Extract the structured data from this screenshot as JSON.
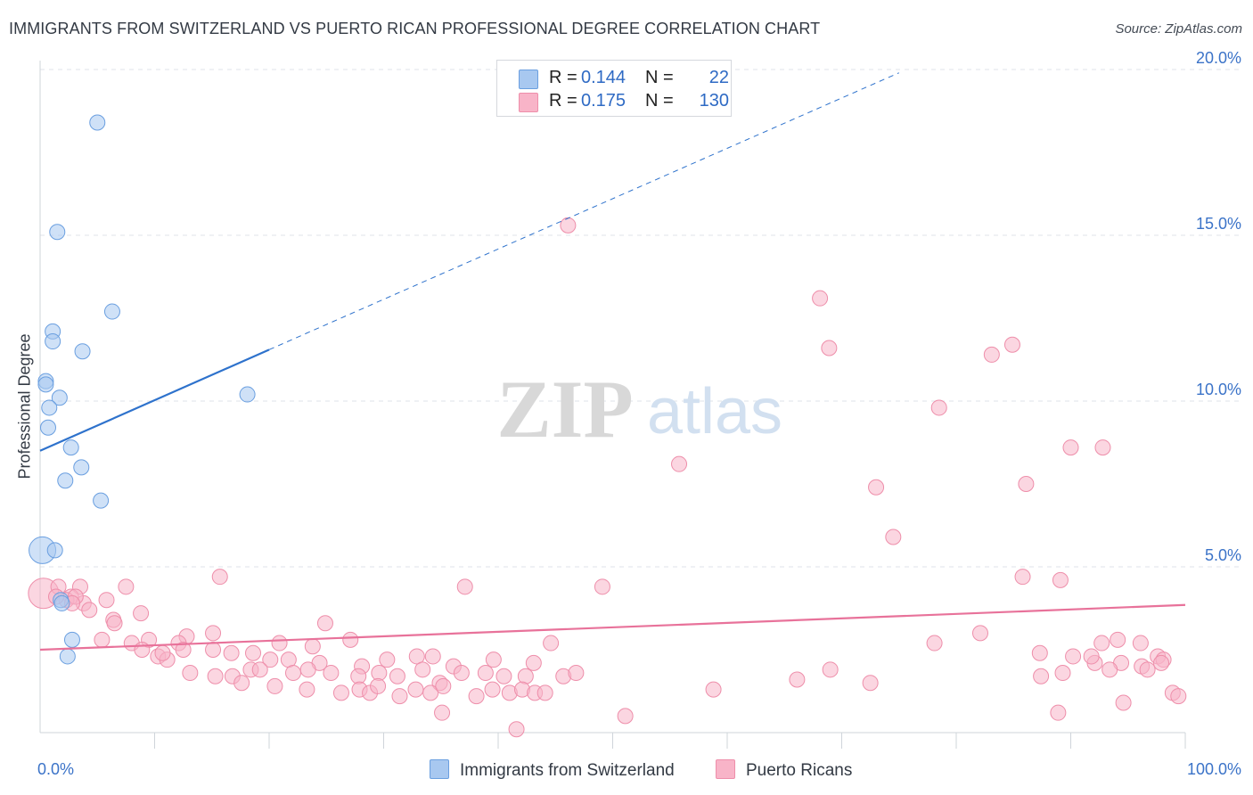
{
  "title": "IMMIGRANTS FROM SWITZERLAND VS PUERTO RICAN PROFESSIONAL DEGREE CORRELATION CHART",
  "source": "Source: ZipAtlas.com",
  "watermark": {
    "zip": "ZIP",
    "atlas": "atlas"
  },
  "legend": [
    {
      "r_label": "R =",
      "r_value": "0.144",
      "n_label": "N =",
      "n_value": "22",
      "color": "#a8c8f0",
      "border": "#6a9fe0"
    },
    {
      "r_label": "R =",
      "r_value": "0.175",
      "n_label": "N =",
      "n_value": "130",
      "color": "#f8b4c8",
      "border": "#ee8eaa"
    }
  ],
  "bottom_legend": [
    {
      "label": "Immigrants from Switzerland",
      "color": "#a8c8f0",
      "border": "#6a9fe0"
    },
    {
      "label": "Puerto Ricans",
      "color": "#f8b4c8",
      "border": "#ee8eaa"
    }
  ],
  "chart_data": {
    "type": "scatter",
    "title": "IMMIGRANTS FROM SWITZERLAND VS PUERTO RICAN PROFESSIONAL DEGREE CORRELATION CHART",
    "xlabel": "",
    "ylabel": "Professional Degree",
    "xlim": [
      0,
      100
    ],
    "ylim": [
      0,
      20
    ],
    "x_tick_labels": [
      "0.0%",
      "100.0%"
    ],
    "y_ticks": [
      5,
      10,
      15,
      20
    ],
    "y_tick_labels": [
      "5.0%",
      "10.0%",
      "15.0%",
      "20.0%"
    ],
    "grid": true,
    "series": [
      {
        "name": "Immigrants from Switzerland",
        "color": "#a8c8f0",
        "stroke": "#6a9fe0",
        "line_color": "#2e72cc",
        "trend": {
          "x0": 0,
          "y0": 8.5,
          "x1": 20,
          "y1": 11.55,
          "dash_to_x": 75,
          "dash_to_y": 19.9
        },
        "points": [
          [
            5.0,
            18.4
          ],
          [
            1.5,
            15.1
          ],
          [
            6.3,
            12.7
          ],
          [
            1.1,
            12.1
          ],
          [
            1.1,
            11.8
          ],
          [
            3.7,
            11.5
          ],
          [
            0.5,
            10.6
          ],
          [
            0.5,
            10.5
          ],
          [
            1.7,
            10.1
          ],
          [
            0.8,
            9.8
          ],
          [
            18.1,
            10.2
          ],
          [
            0.7,
            9.2
          ],
          [
            2.7,
            8.6
          ],
          [
            3.6,
            8.0
          ],
          [
            2.2,
            7.6
          ],
          [
            5.3,
            7.0
          ],
          [
            0.2,
            5.5
          ],
          [
            1.3,
            5.5
          ],
          [
            1.8,
            4.0
          ],
          [
            1.9,
            3.9
          ],
          [
            2.8,
            2.8
          ],
          [
            2.4,
            2.3
          ]
        ],
        "sizes": {
          "16": 30
        }
      },
      {
        "name": "Puerto Ricans",
        "color": "#f8b4c8",
        "stroke": "#ee8eaa",
        "line_color": "#e8729a",
        "trend": {
          "x0": 0,
          "y0": 2.5,
          "x1": 100,
          "y1": 3.85
        },
        "points": [
          [
            46.1,
            15.3
          ],
          [
            68.1,
            13.1
          ],
          [
            68.9,
            11.6
          ],
          [
            84.9,
            11.7
          ],
          [
            83.1,
            11.4
          ],
          [
            78.5,
            9.8
          ],
          [
            90.0,
            8.6
          ],
          [
            92.8,
            8.6
          ],
          [
            55.8,
            8.1
          ],
          [
            73.0,
            7.4
          ],
          [
            86.1,
            7.5
          ],
          [
            74.5,
            5.9
          ],
          [
            15.7,
            4.7
          ],
          [
            85.8,
            4.7
          ],
          [
            89.1,
            4.6
          ],
          [
            37.1,
            4.4
          ],
          [
            49.1,
            4.4
          ],
          [
            0.3,
            4.2
          ],
          [
            3.5,
            4.4
          ],
          [
            7.5,
            4.4
          ],
          [
            1.6,
            4.4
          ],
          [
            2.7,
            4.1
          ],
          [
            3.8,
            3.9
          ],
          [
            5.8,
            4.0
          ],
          [
            4.3,
            3.7
          ],
          [
            8.8,
            3.6
          ],
          [
            6.4,
            3.4
          ],
          [
            6.5,
            3.3
          ],
          [
            24.9,
            3.3
          ],
          [
            15.1,
            3.0
          ],
          [
            5.4,
            2.8
          ],
          [
            8.0,
            2.7
          ],
          [
            12.8,
            2.9
          ],
          [
            12.1,
            2.7
          ],
          [
            9.5,
            2.8
          ],
          [
            20.9,
            2.7
          ],
          [
            27.1,
            2.8
          ],
          [
            8.9,
            2.5
          ],
          [
            10.3,
            2.3
          ],
          [
            11.1,
            2.2
          ],
          [
            12.5,
            2.5
          ],
          [
            15.1,
            2.5
          ],
          [
            16.7,
            2.4
          ],
          [
            18.6,
            2.4
          ],
          [
            23.8,
            2.6
          ],
          [
            20.1,
            2.2
          ],
          [
            21.7,
            2.2
          ],
          [
            24.4,
            2.1
          ],
          [
            28.1,
            2.0
          ],
          [
            30.3,
            2.2
          ],
          [
            32.9,
            2.3
          ],
          [
            34.3,
            2.3
          ],
          [
            36.1,
            2.0
          ],
          [
            39.6,
            2.2
          ],
          [
            43.1,
            2.1
          ],
          [
            44.6,
            2.7
          ],
          [
            78.1,
            2.7
          ],
          [
            82.1,
            3.0
          ],
          [
            87.3,
            2.4
          ],
          [
            90.2,
            2.3
          ],
          [
            92.7,
            2.7
          ],
          [
            94.1,
            2.8
          ],
          [
            96.1,
            2.7
          ],
          [
            97.6,
            2.3
          ],
          [
            92.1,
            2.1
          ],
          [
            94.4,
            2.1
          ],
          [
            96.2,
            2.0
          ],
          [
            98.1,
            2.2
          ],
          [
            97.9,
            2.1
          ],
          [
            91.8,
            2.3
          ],
          [
            13.1,
            1.8
          ],
          [
            15.3,
            1.7
          ],
          [
            16.8,
            1.7
          ],
          [
            18.4,
            1.9
          ],
          [
            19.2,
            1.9
          ],
          [
            22.1,
            1.8
          ],
          [
            23.4,
            1.9
          ],
          [
            25.4,
            1.8
          ],
          [
            27.8,
            1.7
          ],
          [
            29.6,
            1.8
          ],
          [
            31.2,
            1.7
          ],
          [
            33.4,
            1.9
          ],
          [
            34.9,
            1.5
          ],
          [
            36.8,
            1.8
          ],
          [
            38.9,
            1.8
          ],
          [
            40.5,
            1.7
          ],
          [
            42.4,
            1.7
          ],
          [
            45.7,
            1.7
          ],
          [
            46.8,
            1.8
          ],
          [
            69.0,
            1.9
          ],
          [
            66.1,
            1.6
          ],
          [
            72.5,
            1.5
          ],
          [
            87.4,
            1.7
          ],
          [
            89.3,
            1.8
          ],
          [
            93.4,
            1.9
          ],
          [
            96.7,
            1.9
          ],
          [
            17.6,
            1.5
          ],
          [
            20.5,
            1.4
          ],
          [
            23.3,
            1.3
          ],
          [
            26.3,
            1.2
          ],
          [
            27.9,
            1.3
          ],
          [
            28.8,
            1.2
          ],
          [
            29.5,
            1.4
          ],
          [
            31.4,
            1.1
          ],
          [
            32.8,
            1.3
          ],
          [
            34.1,
            1.2
          ],
          [
            35.2,
            1.4
          ],
          [
            38.1,
            1.1
          ],
          [
            39.5,
            1.3
          ],
          [
            41.0,
            1.2
          ],
          [
            42.1,
            1.3
          ],
          [
            43.2,
            1.2
          ],
          [
            44.1,
            1.2
          ],
          [
            58.8,
            1.3
          ],
          [
            98.9,
            1.2
          ],
          [
            99.4,
            1.1
          ],
          [
            94.6,
            0.9
          ],
          [
            35.1,
            0.6
          ],
          [
            51.1,
            0.5
          ],
          [
            88.9,
            0.6
          ],
          [
            41.6,
            0.1
          ],
          [
            2.3,
            4.0
          ],
          [
            1.4,
            4.1
          ],
          [
            3.1,
            4.1
          ],
          [
            2.8,
            3.9
          ],
          [
            10.7,
            2.4
          ]
        ],
        "sizes": {
          "17": 34
        }
      }
    ]
  }
}
